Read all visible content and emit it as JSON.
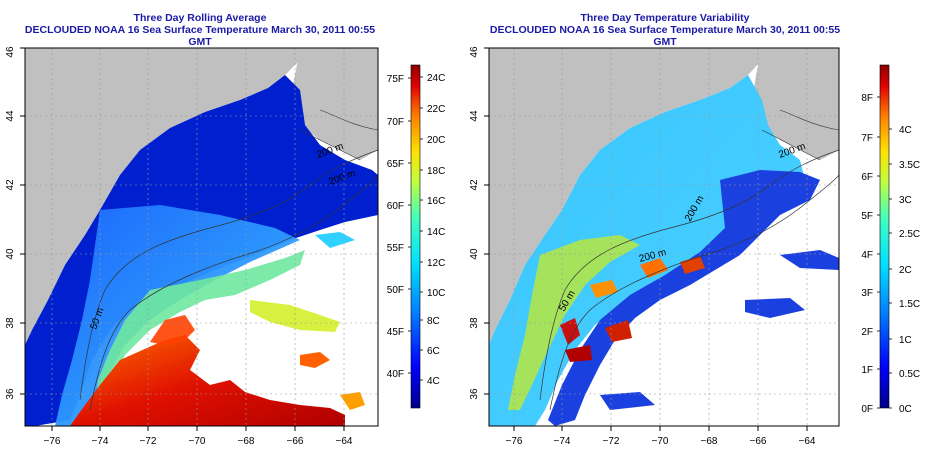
{
  "panels": [
    {
      "id": "rolling-average",
      "title_line1": "Three Day Rolling Average",
      "title_line2": "DECLOUDED NOAA 16 Sea Surface Temperature March 30, 2011 00:55 GMT",
      "x_ticks": [
        "−76",
        "−74",
        "−72",
        "−70",
        "−68",
        "−66",
        "−64"
      ],
      "y_ticks": [
        "36",
        "38",
        "40",
        "42",
        "44",
        "46"
      ],
      "contour_labels": [
        "200 m",
        "200 m",
        "50 m"
      ],
      "colorbar": {
        "left_labels": [
          "75F",
          "70F",
          "65F",
          "60F",
          "55F",
          "50F",
          "45F",
          "40F"
        ],
        "right_labels": [
          "24C",
          "22C",
          "20C",
          "18C",
          "16C",
          "14C",
          "12C",
          "10C",
          "8C",
          "6C",
          "4C"
        ]
      }
    },
    {
      "id": "temperature-variability",
      "title_line1": "Three Day Temperature Variability",
      "title_line2": "DECLOUDED NOAA 16 Sea Surface Temperature March 30, 2011 00:55 GMT",
      "x_ticks": [
        "−76",
        "−74",
        "−72",
        "−70",
        "−68",
        "−66",
        "−64"
      ],
      "y_ticks": [
        "36",
        "38",
        "40",
        "42",
        "44",
        "46"
      ],
      "contour_labels": [
        "200 m",
        "200 m",
        "50 m",
        "200 m"
      ],
      "colorbar": {
        "left_labels": [
          "8F",
          "7F",
          "6F",
          "5F",
          "4F",
          "3F",
          "2F",
          "1F",
          "0F"
        ],
        "right_labels": [
          "4C",
          "3.5C",
          "3C",
          "2.5C",
          "2C",
          "1.5C",
          "1C",
          "0.5C",
          "0C"
        ]
      }
    }
  ],
  "colors": {
    "land": "#c0c0c0",
    "no_data": "#ffffff",
    "title": "#1a1aa6",
    "grid": "#9a9a9a"
  }
}
